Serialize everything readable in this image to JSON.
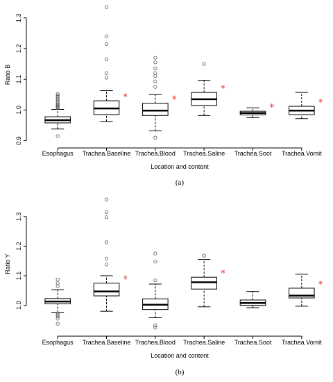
{
  "colors": {
    "significance_marker": "#e8261f",
    "box_line": "#000000",
    "outlier": "#555555"
  },
  "chart_data": [
    {
      "type": "box",
      "caption": "(a)",
      "xlabel": "Location and content",
      "ylabel": "Ratio B",
      "ylim": [
        0.89,
        1.34
      ],
      "yticks": [
        {
          "v": 0.9,
          "label": "0.9"
        },
        {
          "v": 1.0,
          "label": "1.0"
        },
        {
          "v": 1.1,
          "label": "1.1"
        },
        {
          "v": 1.2,
          "label": "1.2"
        },
        {
          "v": 1.3,
          "label": "1.3"
        }
      ],
      "categories": [
        "Esophagus",
        "Trachea.Baseline",
        "Trachea.Blood",
        "Trachea.Saline",
        "Trachea.Soot",
        "Trachea.Vomit"
      ],
      "boxes": [
        {
          "whisker_low": 0.938,
          "q1": 0.958,
          "median": 0.967,
          "q3": 0.978,
          "whisker_high": 1.002,
          "outliers": [
            0.915,
            1.006,
            1.009,
            1.012,
            1.015,
            1.018,
            1.022,
            1.027,
            1.032,
            1.037,
            1.043,
            1.048,
            1.052
          ],
          "marker": ""
        },
        {
          "whisker_low": 0.963,
          "q1": 0.985,
          "median": 1.005,
          "q3": 1.03,
          "whisker_high": 1.063,
          "outliers": [
            1.105,
            1.12,
            1.165,
            1.215,
            1.24,
            1.335
          ],
          "marker": "*"
        },
        {
          "whisker_low": 0.932,
          "q1": 0.982,
          "median": 0.998,
          "q3": 1.022,
          "whisker_high": 1.05,
          "outliers": [
            0.91,
            1.075,
            1.093,
            1.11,
            1.12,
            1.135,
            1.155,
            1.17
          ],
          "marker": "*"
        },
        {
          "whisker_low": 0.982,
          "q1": 1.015,
          "median": 1.035,
          "q3": 1.057,
          "whisker_high": 1.097,
          "outliers": [
            1.15
          ],
          "marker": "*"
        },
        {
          "whisker_low": 0.975,
          "q1": 0.984,
          "median": 0.99,
          "q3": 0.996,
          "whisker_high": 1.007,
          "outliers": [],
          "marker": "*"
        },
        {
          "whisker_low": 0.972,
          "q1": 0.985,
          "median": 0.998,
          "q3": 1.012,
          "whisker_high": 1.057,
          "outliers": [],
          "marker": "*"
        }
      ]
    },
    {
      "type": "box",
      "caption": "(b)",
      "xlabel": "Location and content",
      "ylabel": "Ratio Y",
      "ylim": [
        0.91,
        1.37
      ],
      "yticks": [
        {
          "v": 1.0,
          "label": "1.0"
        },
        {
          "v": 1.1,
          "label": "1.1"
        },
        {
          "v": 1.2,
          "label": "1.2"
        },
        {
          "v": 1.3,
          "label": "1.3"
        }
      ],
      "categories": [
        "Esophagus",
        "Trachea.Baseline",
        "Trachea.Blood",
        "Trachea.Saline",
        "Trachea.Soot",
        "Trachea.Vomit"
      ],
      "boxes": [
        {
          "whisker_low": 0.977,
          "q1": 1.005,
          "median": 1.013,
          "q3": 1.023,
          "whisker_high": 1.053,
          "outliers": [
            0.938,
            0.955,
            0.962,
            0.968,
            0.973,
            1.065,
            1.075,
            1.087
          ],
          "marker": ""
        },
        {
          "whisker_low": 0.98,
          "q1": 1.032,
          "median": 1.047,
          "q3": 1.075,
          "whisker_high": 1.1,
          "outliers": [
            1.138,
            1.158,
            1.213,
            1.298,
            1.315,
            1.358
          ],
          "marker": "*"
        },
        {
          "whisker_low": 0.958,
          "q1": 0.986,
          "median": 1.002,
          "q3": 1.022,
          "whisker_high": 1.072,
          "outliers": [
            0.925,
            0.932,
            1.085,
            1.148,
            1.175
          ],
          "marker": ""
        },
        {
          "whisker_low": 0.995,
          "q1": 1.055,
          "median": 1.078,
          "q3": 1.095,
          "whisker_high": 1.155,
          "outliers": [
            1.168,
            1.168
          ],
          "marker": "*"
        },
        {
          "whisker_low": 0.992,
          "q1": 1.0,
          "median": 1.008,
          "q3": 1.018,
          "whisker_high": 1.047,
          "outliers": [],
          "marker": ""
        },
        {
          "whisker_low": 0.997,
          "q1": 1.025,
          "median": 1.033,
          "q3": 1.058,
          "whisker_high": 1.105,
          "outliers": [],
          "marker": "*"
        }
      ]
    }
  ]
}
